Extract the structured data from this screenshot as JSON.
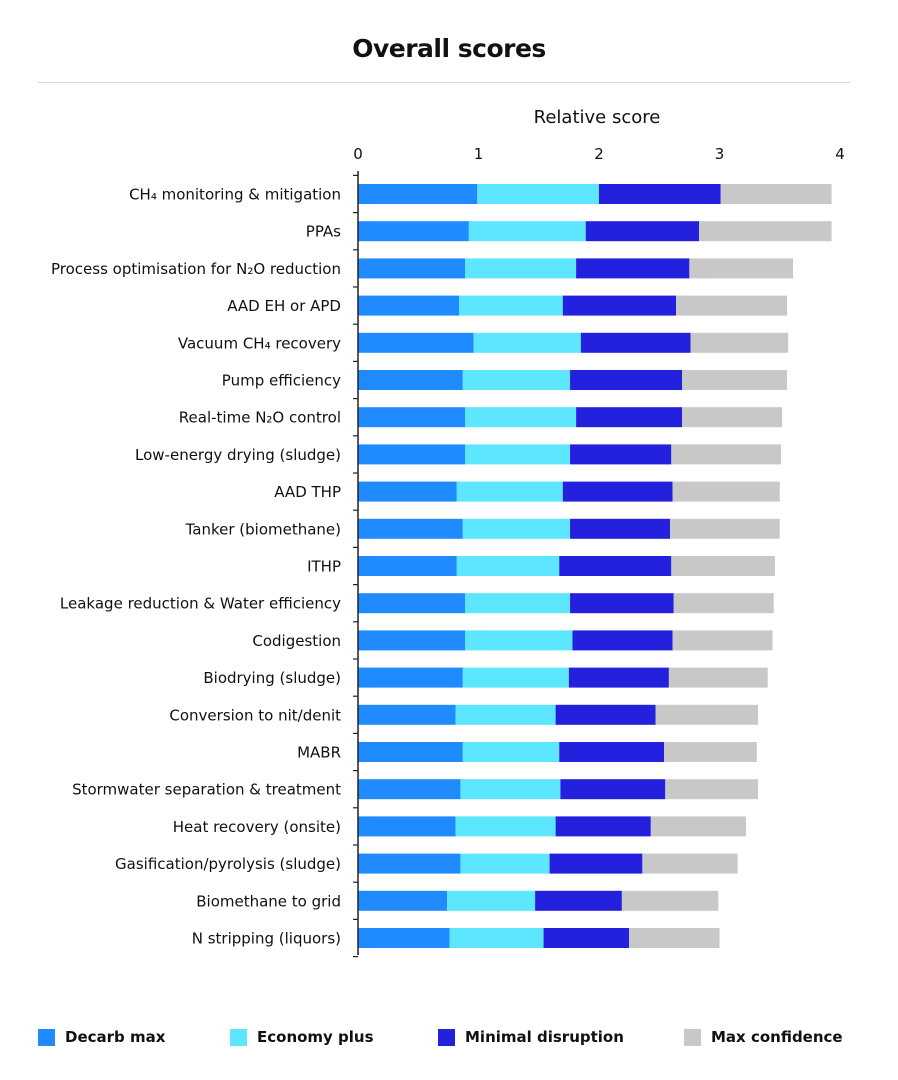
{
  "title": "Overall scores",
  "chart_data": {
    "type": "bar",
    "orientation": "horizontal",
    "stacked": true,
    "title": "Overall scores",
    "xlabel": "Relative score",
    "ylabel": "",
    "xlim": [
      0,
      4
    ],
    "xticks": [
      "0",
      "1",
      "2",
      "3",
      "4"
    ],
    "grid": false,
    "legend_position": "bottom",
    "categories": [
      "CH₄ monitoring & mitigation",
      "PPAs",
      "Process optimisation for N₂O  reduction",
      "AAD EH or APD",
      "Vacuum CH₄ recovery",
      "Pump efficiency",
      "Real-time N₂O control",
      "Low-energy drying (sludge)",
      "AAD THP",
      "Tanker (biomethane)",
      "ITHP",
      "Leakage reduction & Water efficiency",
      "Codigestion",
      "Biodrying (sludge)",
      "Conversion to nit/denit",
      "MABR",
      "Stormwater separation & treatment",
      "Heat recovery (onsite)",
      "Gasification/pyrolysis (sludge)",
      "Biomethane to grid",
      "N stripping (liquors)"
    ],
    "series": [
      {
        "name": "Decarb max",
        "color": "#1f8bff",
        "values": [
          0.99,
          0.92,
          0.89,
          0.84,
          0.96,
          0.87,
          0.89,
          0.89,
          0.82,
          0.87,
          0.82,
          0.89,
          0.89,
          0.87,
          0.81,
          0.87,
          0.85,
          0.81,
          0.85,
          0.74,
          0.76
        ]
      },
      {
        "name": "Economy plus",
        "color": "#5ce6ff",
        "values": [
          1.01,
          0.97,
          0.92,
          0.86,
          0.89,
          0.89,
          0.92,
          0.87,
          0.88,
          0.89,
          0.85,
          0.87,
          0.89,
          0.88,
          0.83,
          0.8,
          0.83,
          0.83,
          0.74,
          0.73,
          0.78
        ]
      },
      {
        "name": "Minimal disruption",
        "color": "#2321dd",
        "values": [
          1.01,
          0.94,
          0.94,
          0.94,
          0.91,
          0.93,
          0.88,
          0.84,
          0.91,
          0.83,
          0.93,
          0.86,
          0.83,
          0.83,
          0.83,
          0.87,
          0.87,
          0.79,
          0.77,
          0.72,
          0.71
        ]
      },
      {
        "name": "Max confidence",
        "color": "#c8c8c8",
        "values": [
          0.92,
          1.1,
          0.86,
          0.92,
          0.81,
          0.87,
          0.83,
          0.91,
          0.89,
          0.91,
          0.86,
          0.83,
          0.83,
          0.82,
          0.85,
          0.77,
          0.77,
          0.79,
          0.79,
          0.8,
          0.75
        ]
      }
    ]
  }
}
